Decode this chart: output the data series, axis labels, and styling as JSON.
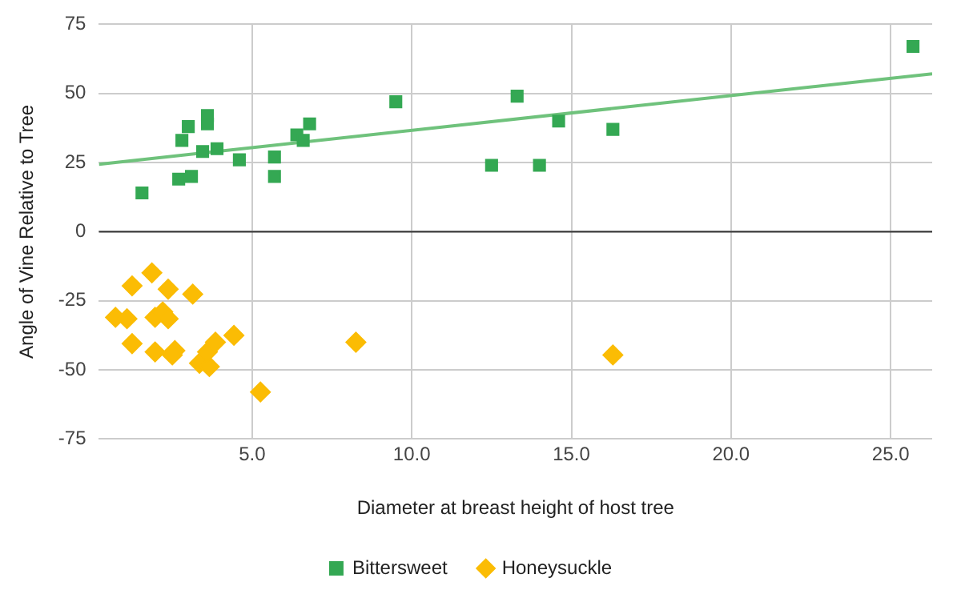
{
  "chart_data": {
    "type": "scatter",
    "xlabel": "Diameter at breast height of host tree",
    "ylabel": "Angle of Vine Relative to Tree",
    "xlim": [
      0.2,
      26.3
    ],
    "xticks": [
      {
        "value": 5,
        "label": "5.0"
      },
      {
        "value": 10,
        "label": "10.0"
      },
      {
        "value": 15,
        "label": "15.0"
      },
      {
        "value": 20,
        "label": "20.0"
      },
      {
        "value": 25,
        "label": "25.0"
      }
    ],
    "ylim": [
      -75,
      75
    ],
    "yticks": [
      -75,
      -50,
      -25,
      0,
      25,
      50,
      75
    ],
    "grid": true,
    "legend": "bottom",
    "ref_lines": [
      {
        "axis": "y",
        "value": 0,
        "color": "#333333"
      }
    ],
    "series": [
      {
        "name": "Bittersweet",
        "color": "#34a853",
        "marker": "square",
        "x": [
          1.55,
          2.8,
          3.0,
          3.6,
          3.6,
          2.7,
          3.1,
          3.45,
          3.9,
          4.6,
          5.7,
          5.7,
          6.4,
          6.6,
          6.8,
          9.5,
          13.3,
          12.5,
          14.0,
          14.6,
          16.3,
          25.7
        ],
        "values": [
          14,
          33,
          38,
          42,
          39,
          19,
          20,
          29,
          30,
          26,
          27,
          20,
          35,
          33,
          39,
          47,
          49,
          24,
          24,
          40,
          37,
          67
        ]
      },
      {
        "name": "Honeysuckle",
        "color": "#fbbc04",
        "marker": "diamond",
        "x": [
          0.72,
          1.08,
          1.24,
          1.86,
          2.37,
          3.14,
          1.96,
          2.2,
          2.37,
          1.24,
          1.96,
          2.58,
          2.5,
          3.35,
          3.66,
          3.6,
          3.85,
          4.43,
          5.26,
          8.25,
          16.3
        ],
        "values": [
          -31,
          -31.5,
          -19.6,
          -14.9,
          -20.8,
          -22.6,
          -31,
          -29,
          -31.5,
          -40.5,
          -43.5,
          -43,
          -44.6,
          -47.6,
          -48.8,
          -43.5,
          -40,
          -37.5,
          -58,
          -40,
          -44.6
        ]
      },
      {
        "type": "line",
        "color": "#6fc27c",
        "marker": "none",
        "x": [
          0.2,
          26.3
        ],
        "values": [
          24.4,
          57.1
        ]
      }
    ]
  }
}
